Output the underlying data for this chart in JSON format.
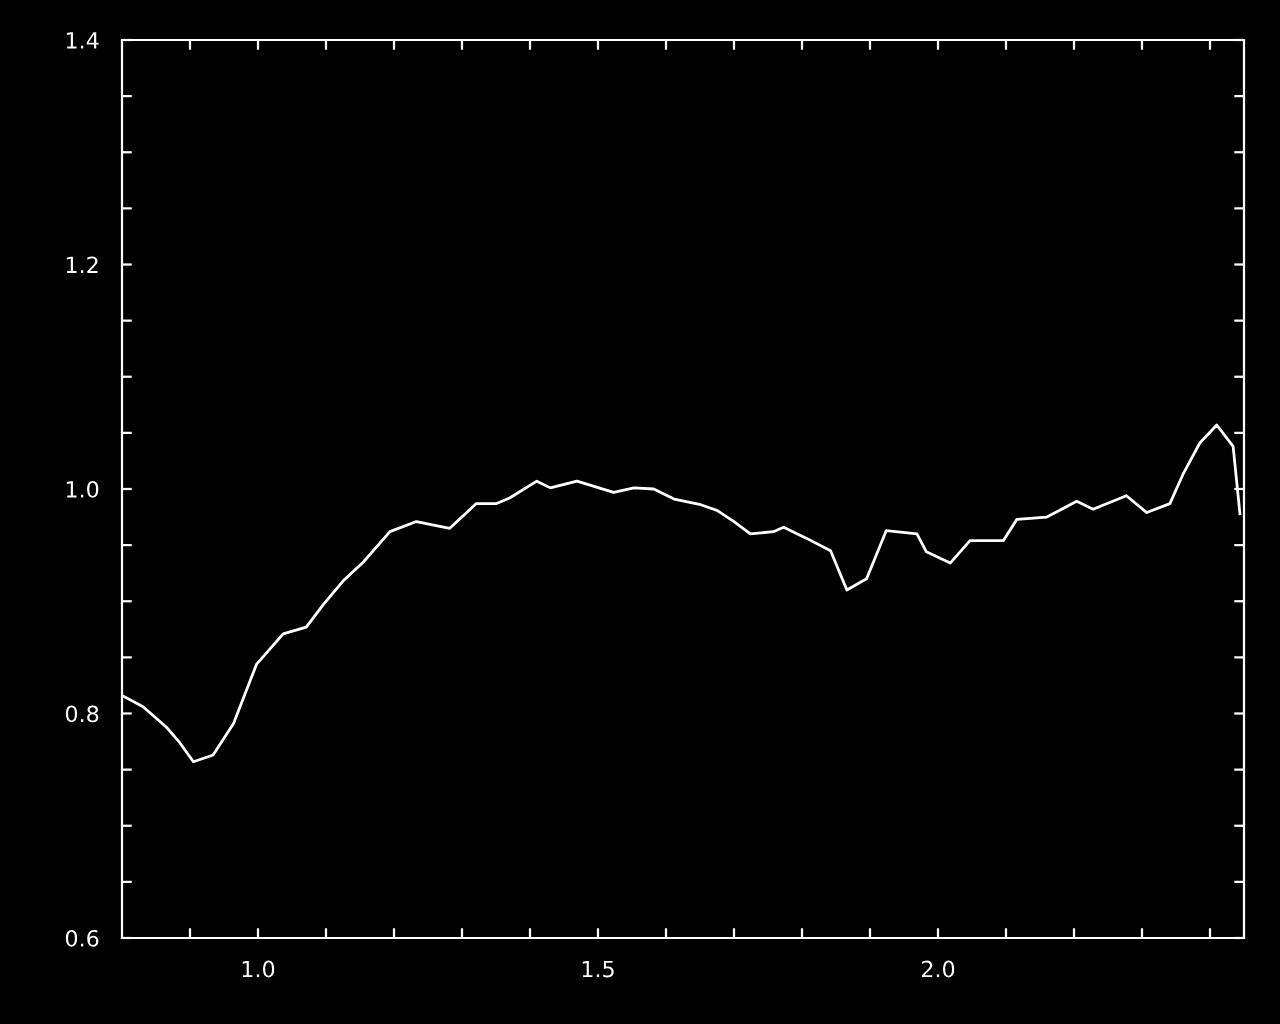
{
  "chart_data": {
    "type": "line",
    "color": "#ffffff",
    "x": [
      0.8,
      0.831,
      0.865,
      0.885,
      0.905,
      0.934,
      0.964,
      0.998,
      1.037,
      1.071,
      1.096,
      1.125,
      1.155,
      1.194,
      1.233,
      1.282,
      1.321,
      1.351,
      1.37,
      1.41,
      1.43,
      1.469,
      1.523,
      1.553,
      1.582,
      1.612,
      1.651,
      1.675,
      1.7,
      1.724,
      1.758,
      1.773,
      1.807,
      1.842,
      1.866,
      1.895,
      1.924,
      1.969,
      1.983,
      2.018,
      2.047,
      2.096,
      2.116,
      2.16,
      2.204,
      2.228,
      2.277,
      2.307,
      2.341,
      2.361,
      2.385,
      2.41,
      2.434,
      2.444
    ],
    "values": [
      0.816,
      0.806,
      0.788,
      0.774,
      0.757,
      0.763,
      0.791,
      0.844,
      0.871,
      0.877,
      0.897,
      0.918,
      0.935,
      0.962,
      0.971,
      0.965,
      0.987,
      0.987,
      0.992,
      1.007,
      1.001,
      1.007,
      0.997,
      1.001,
      1.0,
      0.991,
      0.986,
      0.981,
      0.971,
      0.96,
      0.962,
      0.966,
      0.956,
      0.945,
      0.91,
      0.92,
      0.963,
      0.96,
      0.944,
      0.934,
      0.954,
      0.954,
      0.973,
      0.975,
      0.989,
      0.982,
      0.994,
      0.979,
      0.987,
      1.014,
      1.041,
      1.057,
      1.038,
      0.978
    ],
    "xlim": [
      0.8,
      2.45
    ],
    "ylim": [
      0.6,
      1.4
    ],
    "xticks": [
      {
        "value": 0.9,
        "label": null
      },
      {
        "value": 1.0,
        "label": "1.0"
      },
      {
        "value": 1.1,
        "label": null
      },
      {
        "value": 1.2,
        "label": null
      },
      {
        "value": 1.3,
        "label": null
      },
      {
        "value": 1.4,
        "label": null
      },
      {
        "value": 1.5,
        "label": "1.5"
      },
      {
        "value": 1.6,
        "label": null
      },
      {
        "value": 1.7,
        "label": null
      },
      {
        "value": 1.8,
        "label": null
      },
      {
        "value": 1.9,
        "label": null
      },
      {
        "value": 2.0,
        "label": "2.0"
      },
      {
        "value": 2.1,
        "label": null
      },
      {
        "value": 2.2,
        "label": null
      },
      {
        "value": 2.3,
        "label": null
      },
      {
        "value": 2.4,
        "label": null
      }
    ],
    "yticks": [
      {
        "value": 0.6,
        "label": "0.6"
      },
      {
        "value": 0.65,
        "label": null
      },
      {
        "value": 0.7,
        "label": null
      },
      {
        "value": 0.75,
        "label": null
      },
      {
        "value": 0.8,
        "label": "0.8"
      },
      {
        "value": 0.85,
        "label": null
      },
      {
        "value": 0.9,
        "label": null
      },
      {
        "value": 0.95,
        "label": null
      },
      {
        "value": 1.0,
        "label": "1.0"
      },
      {
        "value": 1.05,
        "label": null
      },
      {
        "value": 1.1,
        "label": null
      },
      {
        "value": 1.15,
        "label": null
      },
      {
        "value": 1.2,
        "label": "1.2"
      },
      {
        "value": 1.25,
        "label": null
      },
      {
        "value": 1.3,
        "label": null
      },
      {
        "value": 1.35,
        "label": null
      },
      {
        "value": 1.4,
        "label": "1.4"
      }
    ],
    "grid": false,
    "legend": false,
    "marker": "none",
    "line_style": "solid"
  }
}
